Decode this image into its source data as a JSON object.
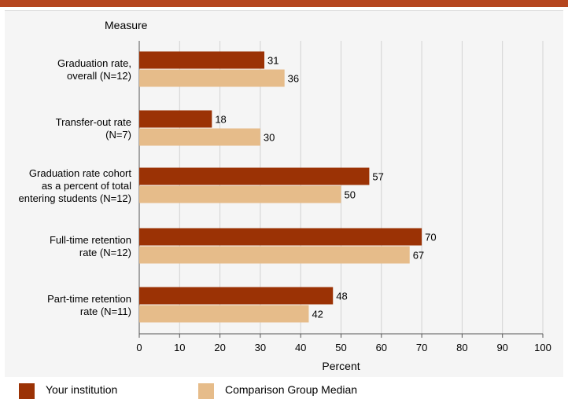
{
  "chart_data": {
    "type": "bar",
    "orientation": "horizontal",
    "ylabel": "Measure",
    "xlabel": "Percent",
    "xlim": [
      0,
      100
    ],
    "xticks": [
      0,
      10,
      20,
      30,
      40,
      50,
      60,
      70,
      80,
      90,
      100
    ],
    "grid": true,
    "legend_position": "bottom",
    "categories": [
      [
        "Graduation rate,",
        "overall (N=12)"
      ],
      [
        "Transfer-out rate",
        "(N=7)"
      ],
      [
        "Graduation rate cohort",
        "as a percent of total",
        "entering students (N=12)"
      ],
      [
        "Full-time retention",
        "rate (N=12)"
      ],
      [
        "Part-time retention",
        "rate (N=11)"
      ]
    ],
    "series": [
      {
        "name": "Your institution",
        "color": "#9b3205",
        "values": [
          31,
          18,
          57,
          70,
          48
        ]
      },
      {
        "name": "Comparison Group Median",
        "color": "#e6bc8a",
        "values": [
          36,
          30,
          50,
          67,
          42
        ]
      }
    ]
  }
}
